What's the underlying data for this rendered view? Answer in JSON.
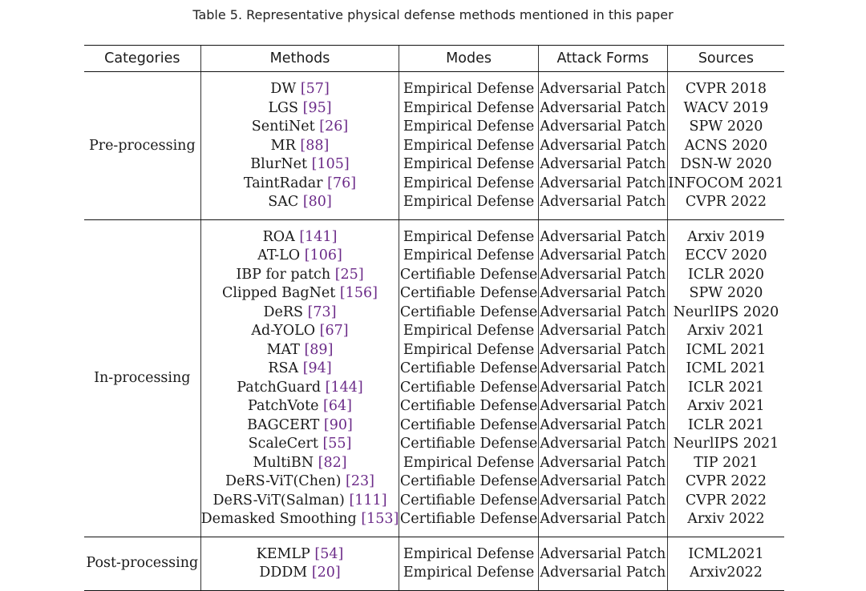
{
  "caption": "Table 5.  Representative physical defense methods mentioned in this paper",
  "headers": [
    "Categories",
    "Methods",
    "Modes",
    "Attack Forms",
    "Sources"
  ],
  "groups": [
    {
      "category": "Pre-processing",
      "rows": [
        {
          "method": "DW",
          "ref": "57",
          "mode": "Empirical Defense",
          "attack": "Adversarial Patch",
          "source": "CVPR 2018"
        },
        {
          "method": "LGS",
          "ref": "95",
          "mode": "Empirical Defense",
          "attack": "Adversarial Patch",
          "source": "WACV 2019"
        },
        {
          "method": "SentiNet",
          "ref": "26",
          "mode": "Empirical Defense",
          "attack": "Adversarial Patch",
          "source": "SPW 2020"
        },
        {
          "method": "MR",
          "ref": "88",
          "mode": "Empirical Defense",
          "attack": "Adversarial Patch",
          "source": "ACNS 2020"
        },
        {
          "method": "BlurNet",
          "ref": "105",
          "mode": "Empirical Defense",
          "attack": "Adversarial Patch",
          "source": "DSN-W 2020"
        },
        {
          "method": "TaintRadar",
          "ref": "76",
          "mode": "Empirical Defense",
          "attack": "Adversarial Patch",
          "source": "INFOCOM 2021"
        },
        {
          "method": "SAC",
          "ref": "80",
          "mode": "Empirical Defense",
          "attack": "Adversarial Patch",
          "source": "CVPR 2022"
        }
      ]
    },
    {
      "category": "In-processing",
      "rows": [
        {
          "method": "ROA",
          "ref": "141",
          "mode": "Empirical Defense",
          "attack": "Adversarial Patch",
          "source": "Arxiv 2019"
        },
        {
          "method": "AT-LO",
          "ref": "106",
          "mode": "Empirical Defense",
          "attack": "Adversarial Patch",
          "source": "ECCV 2020"
        },
        {
          "method": "IBP for patch",
          "ref": "25",
          "mode": "Certifiable Defense",
          "attack": "Adversarial Patch",
          "source": "ICLR 2020"
        },
        {
          "method": "Clipped BagNet",
          "ref": "156",
          "mode": "Certifiable Defense",
          "attack": "Adversarial Patch",
          "source": "SPW 2020"
        },
        {
          "method": "DeRS",
          "ref": "73",
          "mode": "Certifiable Defense",
          "attack": "Adversarial Patch",
          "source": "NeurlIPS 2020"
        },
        {
          "method": "Ad-YOLO",
          "ref": "67",
          "mode": "Empirical Defense",
          "attack": "Adversarial Patch",
          "source": "Arxiv 2021"
        },
        {
          "method": "MAT",
          "ref": "89",
          "mode": "Empirical Defense",
          "attack": "Adversarial Patch",
          "source": "ICML 2021"
        },
        {
          "method": "RSA",
          "ref": "94",
          "mode": "Certifiable Defense",
          "attack": "Adversarial Patch",
          "source": "ICML 2021"
        },
        {
          "method": "PatchGuard",
          "ref": "144",
          "mode": "Certifiable Defense",
          "attack": "Adversarial Patch",
          "source": "ICLR 2021"
        },
        {
          "method": "PatchVote",
          "ref": "64",
          "mode": "Certifiable Defense",
          "attack": "Adversarial Patch",
          "source": "Arxiv 2021"
        },
        {
          "method": "BAGCERT",
          "ref": "90",
          "mode": "Certifiable Defense",
          "attack": "Adversarial Patch",
          "source": "ICLR 2021"
        },
        {
          "method": "ScaleCert",
          "ref": "55",
          "mode": "Certifiable Defense",
          "attack": "Adversarial Patch",
          "source": "NeurlIPS 2021"
        },
        {
          "method": "MultiBN",
          "ref": "82",
          "mode": "Empirical Defense",
          "attack": "Adversarial Patch",
          "source": "TIP 2021"
        },
        {
          "method": "DeRS-ViT(Chen)",
          "ref": "23",
          "mode": "Certifiable Defense",
          "attack": "Adversarial Patch",
          "source": "CVPR 2022"
        },
        {
          "method": "DeRS-ViT(Salman)",
          "ref": "111",
          "mode": "Certifiable Defense",
          "attack": "Adversarial Patch",
          "source": "CVPR 2022"
        },
        {
          "method": "Demasked Smoothing",
          "ref": "153",
          "mode": "Certifiable Defense",
          "attack": "Adversarial Patch",
          "source": "Arxiv 2022"
        }
      ]
    },
    {
      "category": "Post-processing",
      "rows": [
        {
          "method": "KEMLP",
          "ref": "54",
          "mode": "Empirical Defense",
          "attack": "Adversarial Patch",
          "source": "ICML2021"
        },
        {
          "method": "DDDM",
          "ref": "20",
          "mode": "Empirical Defense",
          "attack": "Adversarial Patch",
          "source": "Arxiv2022"
        }
      ]
    }
  ]
}
